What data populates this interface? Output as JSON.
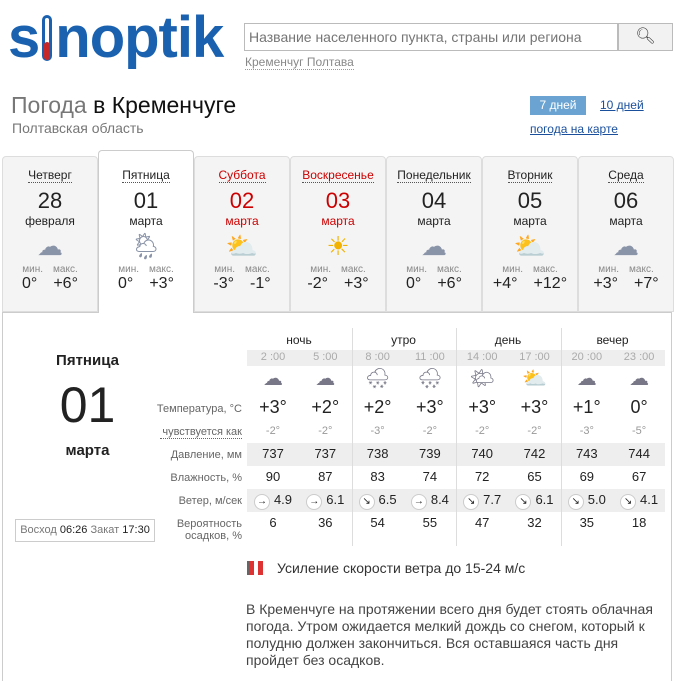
{
  "header": {
    "logo": "sinoptik",
    "search_placeholder": "Название населенного пункта, страны или региона",
    "recent": "Кременчуг Полтава"
  },
  "title": {
    "prefix": "Погода",
    "city": "в Кременчуге",
    "region": "Полтавская область"
  },
  "range": {
    "days7": "7 дней",
    "days10": "10 дней",
    "map": "погода на карте"
  },
  "days": [
    {
      "name": "Четверг",
      "date": "28",
      "month": "февраля",
      "icon": "cloudy",
      "min": "0°",
      "max": "+6°",
      "weekend": false
    },
    {
      "name": "Пятница",
      "date": "01",
      "month": "марта",
      "icon": "partly-cloudy-rain-snow",
      "min": "0°",
      "max": "+3°",
      "weekend": false
    },
    {
      "name": "Суббота",
      "date": "02",
      "month": "марта",
      "icon": "partly-cloudy",
      "min": "-3°",
      "max": "-1°",
      "weekend": true
    },
    {
      "name": "Воскресенье",
      "date": "03",
      "month": "марта",
      "icon": "sunny",
      "min": "-2°",
      "max": "+3°",
      "weekend": true
    },
    {
      "name": "Понедельник",
      "date": "04",
      "month": "марта",
      "icon": "cloudy",
      "min": "0°",
      "max": "+6°",
      "weekend": false
    },
    {
      "name": "Вторник",
      "date": "05",
      "month": "марта",
      "icon": "partly-cloudy",
      "min": "+4°",
      "max": "+12°",
      "weekend": false
    },
    {
      "name": "Среда",
      "date": "06",
      "month": "марта",
      "icon": "cloudy",
      "min": "+3°",
      "max": "+7°",
      "weekend": false
    }
  ],
  "labels": {
    "min": "мин.",
    "max": "макс."
  },
  "selected": {
    "name": "Пятница",
    "date": "01",
    "month": "марта",
    "sunrise_label": "Восход",
    "sunrise": "06:26",
    "sunset_label": "Закат",
    "sunset": "17:30"
  },
  "periods": [
    "ночь",
    "утро",
    "день",
    "вечер"
  ],
  "row_labels": {
    "temp": "Температура, °C",
    "feels": "чувствуется как",
    "pressure": "Давление, мм",
    "humidity": "Влажность, %",
    "wind": "Ветер, м/сек",
    "precip1": "Вероятность",
    "precip2": "осадков, %"
  },
  "hours": [
    {
      "time": "2 :00",
      "icon": "cloudy-night",
      "temp": "+3°",
      "feels": "-2°",
      "pressure": "737",
      "humidity": "90",
      "wind_dir": "→",
      "wind": "4.9",
      "precip": "6"
    },
    {
      "time": "5 :00",
      "icon": "overcast",
      "temp": "+2°",
      "feels": "-2°",
      "pressure": "737",
      "humidity": "87",
      "wind_dir": "→",
      "wind": "6.1",
      "precip": "36"
    },
    {
      "time": "8 :00",
      "icon": "rain-snow",
      "temp": "+2°",
      "feels": "-3°",
      "pressure": "738",
      "humidity": "83",
      "wind_dir": "↘",
      "wind": "6.5",
      "precip": "54"
    },
    {
      "time": "11 :00",
      "icon": "rain-snow",
      "temp": "+3°",
      "feels": "-2°",
      "pressure": "739",
      "humidity": "74",
      "wind_dir": "→",
      "wind": "8.4",
      "precip": "55"
    },
    {
      "time": "14 :00",
      "icon": "sun-cloud",
      "temp": "+3°",
      "feels": "-2°",
      "pressure": "740",
      "humidity": "72",
      "wind_dir": "↘",
      "wind": "7.7",
      "precip": "47"
    },
    {
      "time": "17 :00",
      "icon": "partly-cloudy",
      "temp": "+3°",
      "feels": "-2°",
      "pressure": "742",
      "humidity": "65",
      "wind_dir": "↘",
      "wind": "6.1",
      "precip": "32"
    },
    {
      "time": "20 :00",
      "icon": "overcast",
      "temp": "+1°",
      "feels": "-3°",
      "pressure": "743",
      "humidity": "69",
      "wind_dir": "↘",
      "wind": "5.0",
      "precip": "35"
    },
    {
      "time": "23 :00",
      "icon": "cloudy-night",
      "temp": "0°",
      "feels": "-5°",
      "pressure": "744",
      "humidity": "67",
      "wind_dir": "↘",
      "wind": "4.1",
      "precip": "18"
    }
  ],
  "warning": "Усиление скорости ветра до 15-24 м/с",
  "description": "В Кременчуге на протяжении всего дня будет стоять облачная погода. Утром ожидается мелкий дождь со снегом, который к полудню должен закончиться. Вся оставшаяся часть дня пройдет без осадков."
}
